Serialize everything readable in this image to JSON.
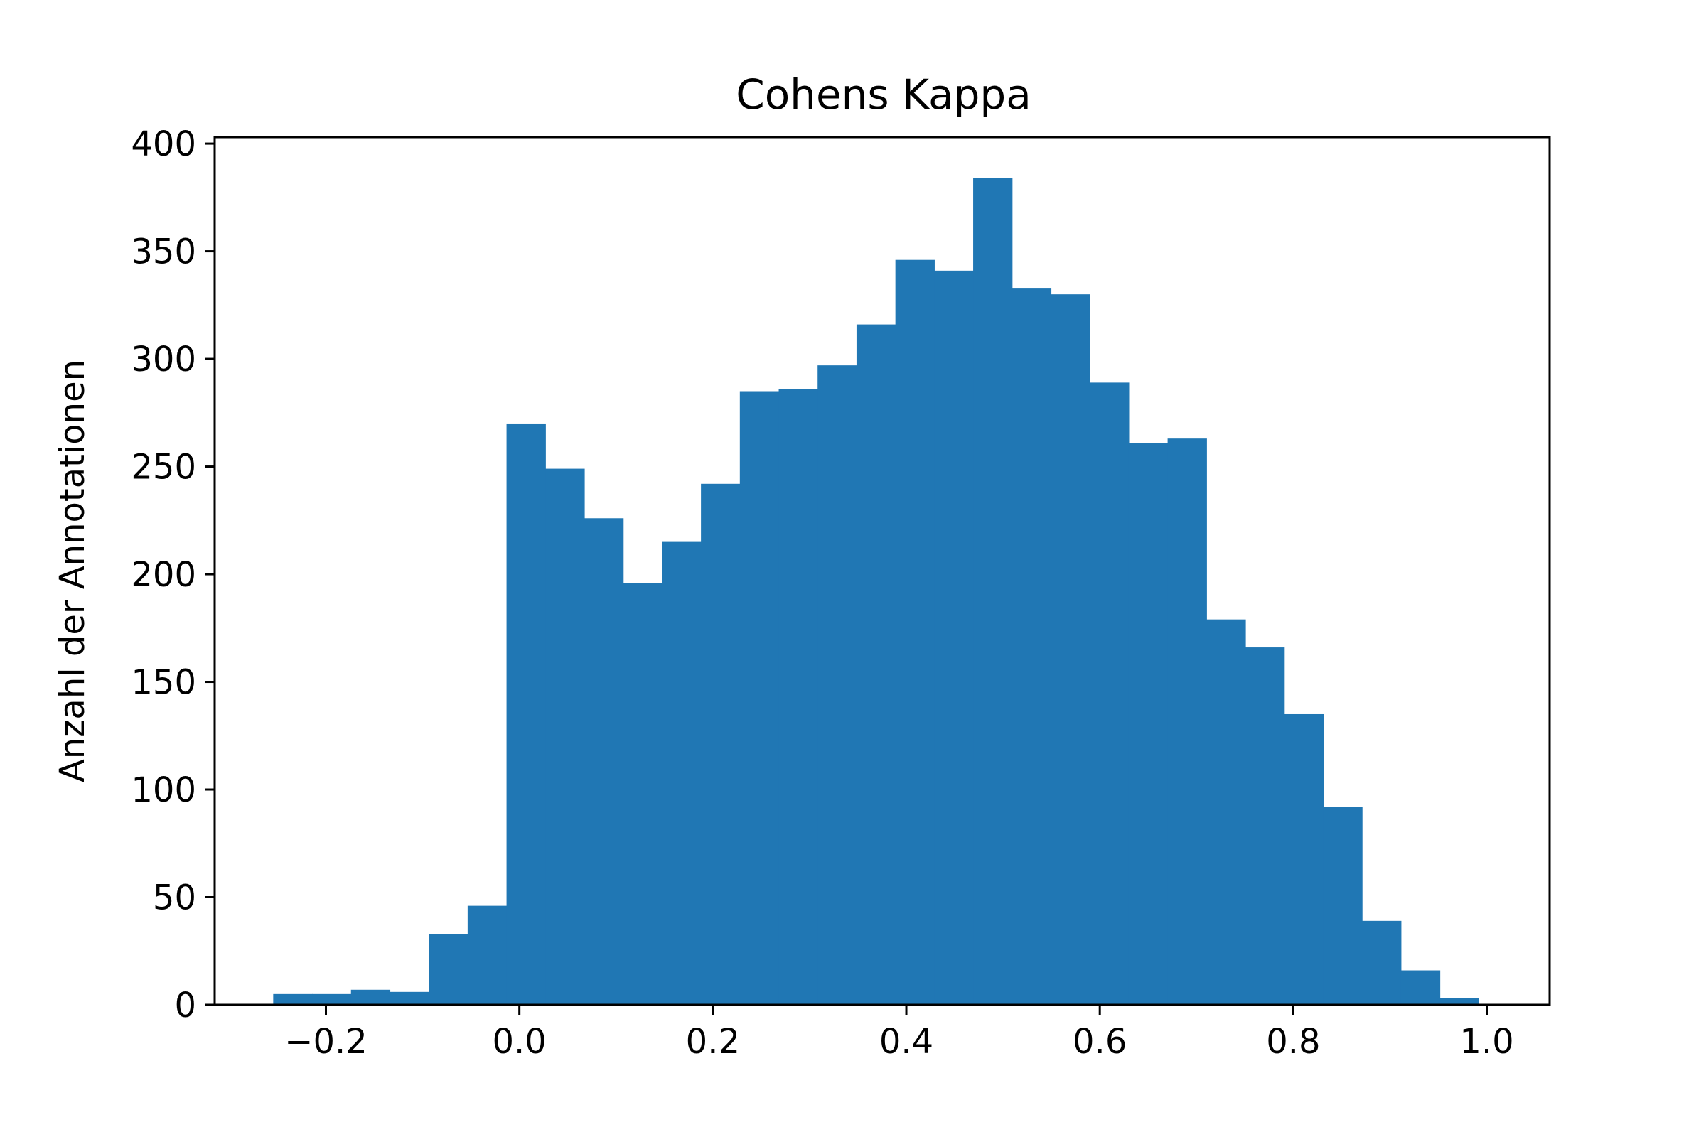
{
  "chart_data": {
    "type": "bar",
    "title": "Cohens Kappa",
    "xlabel": "",
    "ylabel": "Anzahl der Annotationen",
    "bar_color": "#2077b4",
    "xlim": [
      -0.315,
      1.065
    ],
    "ylim": [
      0,
      403
    ],
    "bin_edges": [
      -0.2545,
      -0.2143,
      -0.1741,
      -0.1339,
      -0.0937,
      -0.0535,
      -0.0133,
      0.0269,
      0.0671,
      0.1073,
      0.1475,
      0.1877,
      0.2279,
      0.2681,
      0.3083,
      0.3485,
      0.3887,
      0.4289,
      0.4691,
      0.5093,
      0.5495,
      0.5897,
      0.6299,
      0.6701,
      0.7103,
      0.7505,
      0.7907,
      0.8309,
      0.8711,
      0.9113,
      0.9515,
      0.9917
    ],
    "values": [
      5,
      5,
      7,
      6,
      33,
      46,
      270,
      249,
      226,
      196,
      215,
      242,
      285,
      286,
      297,
      316,
      346,
      341,
      384,
      333,
      330,
      289,
      261,
      263,
      179,
      166,
      135,
      92,
      39,
      16,
      3
    ],
    "xticks": [
      -0.2,
      0.0,
      0.2,
      0.4,
      0.6,
      0.8,
      1.0
    ],
    "xtick_labels": [
      "−0.2",
      "0.0",
      "0.2",
      "0.4",
      "0.6",
      "0.8",
      "1.0"
    ],
    "yticks": [
      0,
      50,
      100,
      150,
      200,
      250,
      300,
      350,
      400
    ],
    "ytick_labels": [
      "0",
      "50",
      "100",
      "150",
      "200",
      "250",
      "300",
      "350",
      "400"
    ],
    "grid": false
  }
}
